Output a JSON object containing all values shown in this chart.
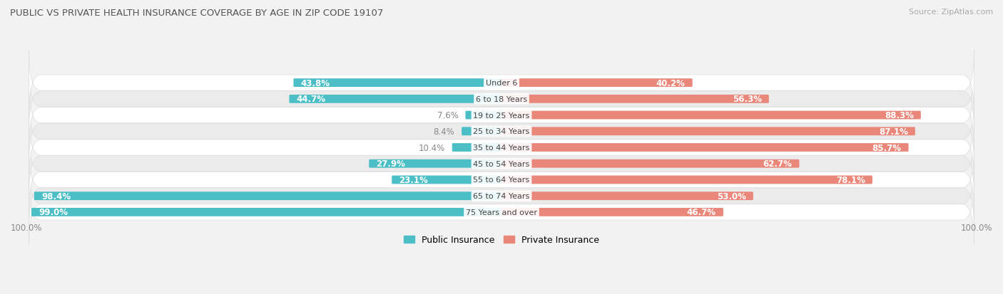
{
  "title": "PUBLIC VS PRIVATE HEALTH INSURANCE COVERAGE BY AGE IN ZIP CODE 19107",
  "source": "Source: ZipAtlas.com",
  "categories": [
    "Under 6",
    "6 to 18 Years",
    "19 to 25 Years",
    "25 to 34 Years",
    "35 to 44 Years",
    "45 to 54 Years",
    "55 to 64 Years",
    "65 to 74 Years",
    "75 Years and over"
  ],
  "public_values": [
    43.8,
    44.7,
    7.6,
    8.4,
    10.4,
    27.9,
    23.1,
    98.4,
    99.0
  ],
  "private_values": [
    40.2,
    56.3,
    88.3,
    87.1,
    85.7,
    62.7,
    78.1,
    53.0,
    46.7
  ],
  "public_color": "#4bbec6",
  "private_color": "#e8877a",
  "background_color": "#f2f2f2",
  "row_colors": [
    "#ffffff",
    "#ebebeb"
  ],
  "bar_height": 0.52,
  "label_fontsize": 8.5,
  "title_fontsize": 9.5,
  "category_fontsize": 8.0,
  "legend_fontsize": 9,
  "max_value": 100.0,
  "inside_label_color": "#ffffff",
  "outside_label_color": "#888888",
  "inside_threshold": 15
}
